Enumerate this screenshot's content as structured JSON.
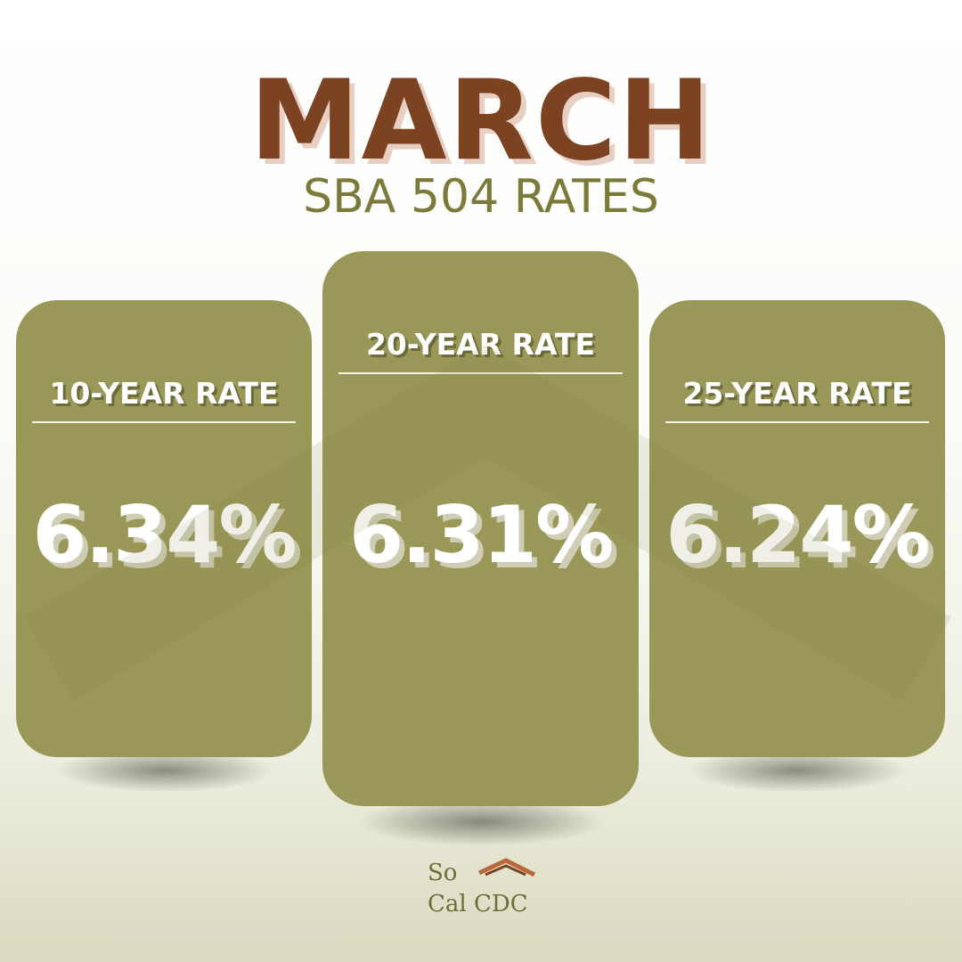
{
  "header": {
    "title": "MARCH",
    "subtitle": "SBA 504 RATES"
  },
  "cards": [
    {
      "label": "10-YEAR RATE",
      "rate": "6.34%"
    },
    {
      "label": "20-YEAR RATE",
      "rate": "6.31%"
    },
    {
      "label": "25-YEAR RATE",
      "rate": "6.24%"
    }
  ],
  "logo": {
    "line1": "So",
    "line2": "Cal CDC"
  }
}
